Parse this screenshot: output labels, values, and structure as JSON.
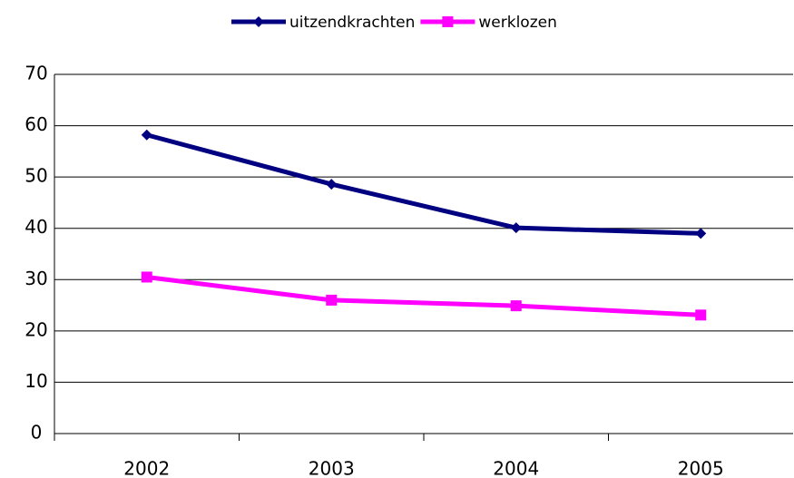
{
  "chart_data": {
    "type": "line",
    "categories": [
      "2002",
      "2003",
      "2004",
      "2005"
    ],
    "series": [
      {
        "name": "uitzendkrachten",
        "color": "#000080",
        "marker": "diamond",
        "values": [
          58.2,
          48.6,
          40.1,
          39.0
        ]
      },
      {
        "name": "werklozen",
        "color": "#ff00ff",
        "marker": "square",
        "values": [
          30.5,
          26.0,
          24.9,
          23.1
        ]
      }
    ],
    "ylim": [
      0,
      70
    ],
    "yticks": [
      0,
      10,
      20,
      30,
      40,
      50,
      60,
      70
    ],
    "grid": true,
    "legend": "top"
  }
}
